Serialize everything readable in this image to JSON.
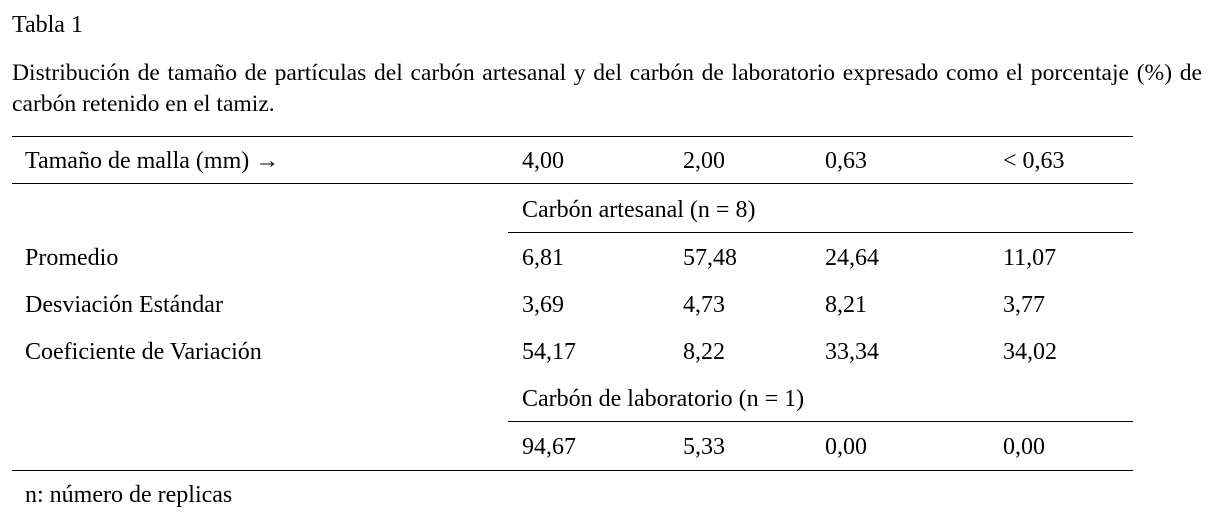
{
  "title": "Tabla 1",
  "caption": "Distribución de tamaño de partículas del carbón artesanal y del carbón de laboratorio expresado como el porcentaje (%) de carbón retenido en el tamiz.",
  "table": {
    "header": [
      "Tamaño de malla (mm) →",
      "4,00",
      "2,00",
      "0,63",
      "< 0,63"
    ],
    "groups": [
      {
        "label": "Carbón artesanal (n = 8)",
        "rows": [
          {
            "label": "Promedio",
            "values": [
              "6,81",
              "57,48",
              "24,64",
              "11,07"
            ]
          },
          {
            "label": "Desviación Estándar",
            "values": [
              "3,69",
              "4,73",
              "8,21",
              "3,77"
            ]
          },
          {
            "label": "Coeficiente de Variación",
            "values": [
              "54,17",
              "8,22",
              "33,34",
              "34,02"
            ]
          }
        ]
      },
      {
        "label": "Carbón de laboratorio (n = 1)",
        "rows": [
          {
            "values": [
              "94,67",
              "5,33",
              "0,00",
              "0,00"
            ]
          }
        ]
      }
    ]
  },
  "footnote": "n: número de replicas"
}
